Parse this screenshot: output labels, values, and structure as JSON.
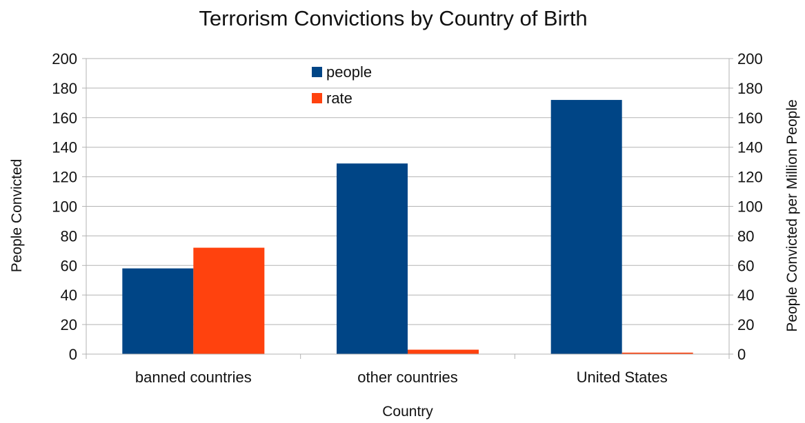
{
  "chart_data": {
    "type": "bar",
    "title": "Terrorism Convictions by Country of Birth",
    "xlabel": "Country",
    "ylabel": "People Convicted",
    "y2label": "People Convicted per Million People",
    "categories": [
      "banned countries",
      "other countries",
      "United States"
    ],
    "series": [
      {
        "name": "people",
        "values": [
          58,
          129,
          172
        ],
        "color": "#004586",
        "axis": "left"
      },
      {
        "name": "rate",
        "values": [
          72,
          3,
          1
        ],
        "color": "#ff420e",
        "axis": "right"
      }
    ],
    "ylim": [
      0,
      200
    ],
    "y2lim": [
      0,
      200
    ],
    "yticks": [
      "0",
      "20",
      "40",
      "60",
      "80",
      "100",
      "120",
      "140",
      "160",
      "180",
      "200"
    ],
    "y2ticks": [
      "0",
      "20",
      "40",
      "60",
      "80",
      "100",
      "120",
      "140",
      "160",
      "180",
      "200"
    ],
    "grid": true,
    "legend_position": "top-center"
  }
}
